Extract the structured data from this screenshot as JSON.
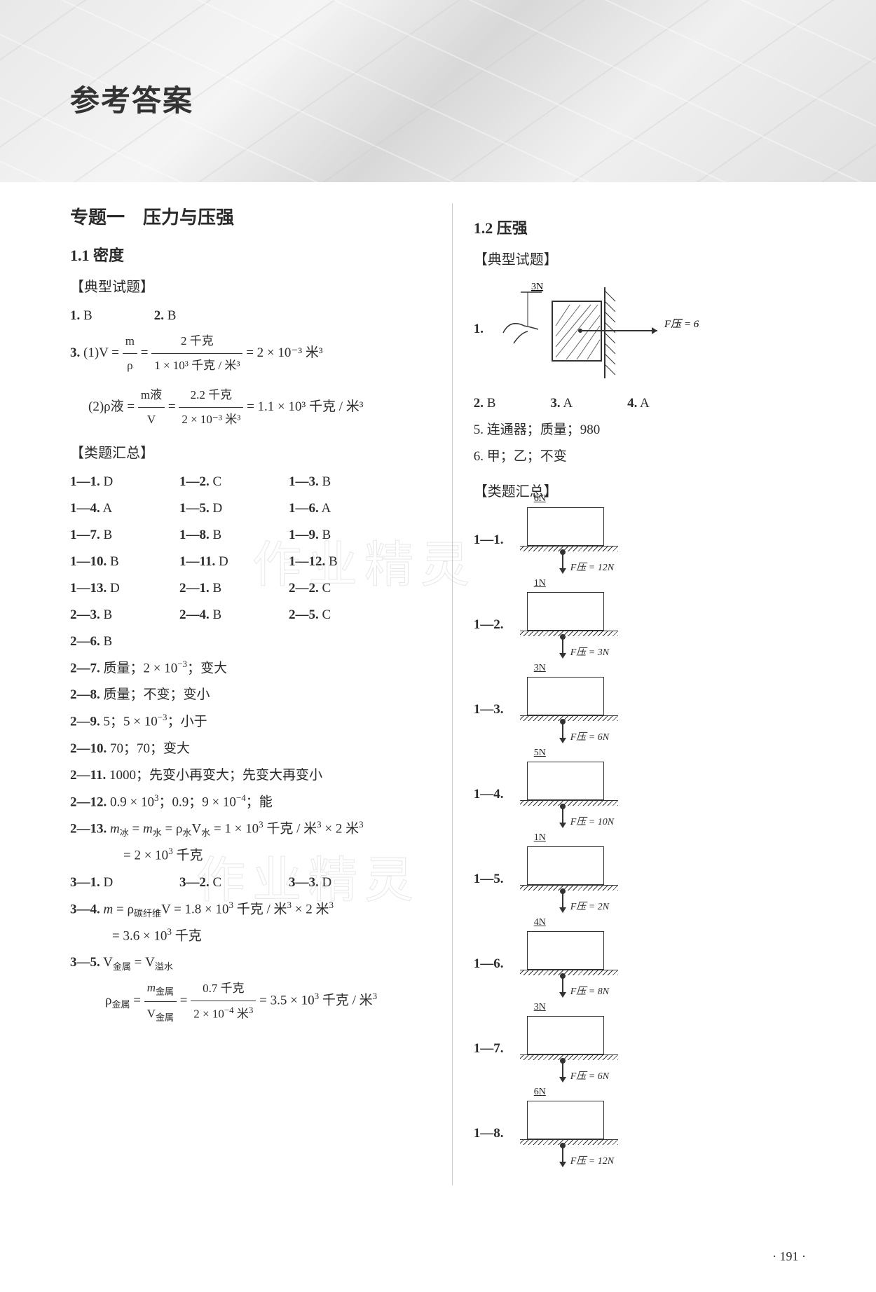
{
  "page_title": "参考答案",
  "page_number": "· 191 ·",
  "watermark_text": "作业精灵",
  "left": {
    "topic": "专题一　压力与压强",
    "section11_title": "1.1 密度",
    "typical_heading": "【典型试题】",
    "summary_heading": "【类题汇总】",
    "q1": "1.",
    "a1": "B",
    "q2": "2.",
    "a2": "B",
    "q3_prefix": "3.",
    "q3_1_prefix": "(1)",
    "q3_1_lhs": "V =",
    "q3_1_frac1_num": "m",
    "q3_1_frac1_den": "ρ",
    "q3_1_eq": "=",
    "q3_1_frac2_num": "2 千克",
    "q3_1_frac2_den": "1 × 10³ 千克 / 米³",
    "q3_1_result": "= 2 × 10⁻³ 米³",
    "q3_2_prefix": "(2)",
    "q3_2_lhs": "ρ液 =",
    "q3_2_frac1_num": "m液",
    "q3_2_frac1_den": "V",
    "q3_2_eq": "=",
    "q3_2_frac2_num": "2.2 千克",
    "q3_2_frac2_den": "2 × 10⁻³ 米³",
    "q3_2_result": "= 1.1 × 10³ 千克 / 米³",
    "summary_items": [
      {
        "n": "1—1.",
        "a": "D"
      },
      {
        "n": "1—2.",
        "a": "C"
      },
      {
        "n": "1—3.",
        "a": "B"
      },
      {
        "n": "1—4.",
        "a": "A"
      },
      {
        "n": "1—5.",
        "a": "D"
      },
      {
        "n": "1—6.",
        "a": "A"
      },
      {
        "n": "1—7.",
        "a": "B"
      },
      {
        "n": "1—8.",
        "a": "B"
      },
      {
        "n": "1—9.",
        "a": "B"
      },
      {
        "n": "1—10.",
        "a": "B"
      },
      {
        "n": "1—11.",
        "a": "D"
      },
      {
        "n": "1—12.",
        "a": "B"
      },
      {
        "n": "1—13.",
        "a": "D"
      },
      {
        "n": "2—1.",
        "a": "B"
      },
      {
        "n": "2—2.",
        "a": "C"
      },
      {
        "n": "2—3.",
        "a": "B"
      },
      {
        "n": "2—4.",
        "a": "B"
      },
      {
        "n": "2—5.",
        "a": "C"
      },
      {
        "n": "2—6.",
        "a": "B"
      }
    ],
    "line27": "2—7. 质量；2 × 10⁻³；变大",
    "line28": "2—8. 质量；不变；变小",
    "line29": "2—9. 5；5 × 10⁻³；小于",
    "line210": "2—10. 70；70；变大",
    "line211": "2—11. 1000；先变小再变大；先变大再变小",
    "line212": "2—12. 0.9 × 10³；0.9；9 × 10⁻⁴；能",
    "line213a": "2—13. m冰 = m水 = ρ水V水 = 1 × 10³ 千克 / 米³ × 2 米³",
    "line213b": "= 2 × 10³ 千克",
    "row3": [
      {
        "n": "3—1.",
        "a": "D"
      },
      {
        "n": "3—2.",
        "a": "C"
      },
      {
        "n": "3—3.",
        "a": "D"
      }
    ],
    "line34a": "3—4. m = ρ碳纤维V = 1.8 × 10³ 千克 / 米³ × 2 米³",
    "line34b": "= 3.6 × 10³ 千克",
    "line35a": "3—5. V金属 = V溢水",
    "line35_lhs": "ρ金属 =",
    "line35_frac1_num": "m金属",
    "line35_frac1_den": "V金属",
    "line35_eq": "=",
    "line35_frac2_num": "0.7 千克",
    "line35_frac2_den": "2 × 10⁻⁴ 米³",
    "line35_result": "= 3.5 × 10³ 千克 / 米³"
  },
  "right": {
    "section12_title": "1.2 压强",
    "typical_heading": "【典型试题】",
    "summary_heading": "【类题汇总】",
    "q1_label": "1.",
    "diagram1": {
      "pull_label": "3N",
      "force_label": "F压 = 6N",
      "hatch_color": "#444444",
      "box_hatch_color": "#666666"
    },
    "q2": "2.",
    "a2": "B",
    "q3": "3.",
    "a3": "A",
    "q4": "4.",
    "a4": "A",
    "q5": "5. 连通器；质量；980",
    "q6": "6. 甲；乙；不变",
    "diagrams": [
      {
        "label": "1—1.",
        "top": "6N",
        "force": "F压 = 12N"
      },
      {
        "label": "1—2.",
        "top": "1N",
        "force": "F压 = 3N"
      },
      {
        "label": "1—3.",
        "top": "3N",
        "force": "F压 = 6N"
      },
      {
        "label": "1—4.",
        "top": "5N",
        "force": "F压 = 10N"
      },
      {
        "label": "1—5.",
        "top": "1N",
        "force": "F压 = 2N"
      },
      {
        "label": "1—6.",
        "top": "4N",
        "force": "F压 = 8N"
      },
      {
        "label": "1—7.",
        "top": "3N",
        "force": "F压 = 6N"
      },
      {
        "label": "1—8.",
        "top": "6N",
        "force": "F压 = 12N"
      }
    ]
  },
  "style": {
    "text_color": "#2a2a2a",
    "body_fontsize": 19,
    "heading_fontsize": 26,
    "sub_fontsize": 22,
    "background": "#ffffff",
    "border_color": "#333333",
    "divider_color": "#cccccc"
  }
}
